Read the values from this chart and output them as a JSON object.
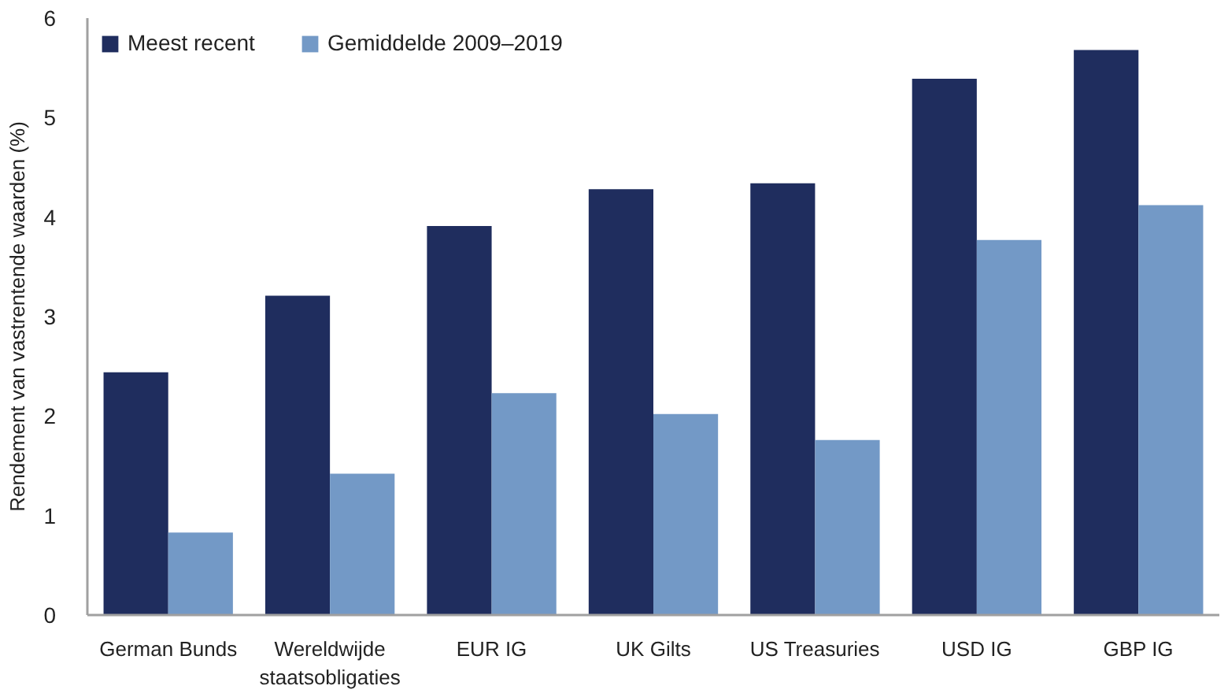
{
  "chart_data": {
    "type": "bar",
    "ylabel": "Rendement van vastrentende waarden (%)",
    "categories": [
      "German Bunds",
      "Wereldwijde staatsobligaties",
      "EUR IG",
      "UK Gilts",
      "US Treasuries",
      "USD IG",
      "GBP IG"
    ],
    "series": [
      {
        "name": "Meest recent",
        "color": "#1f2d5e",
        "values": [
          2.44,
          3.21,
          3.91,
          4.28,
          4.34,
          5.39,
          5.68
        ]
      },
      {
        "name": "Gemiddelde 2009–2019",
        "color": "#7399c6",
        "values": [
          0.83,
          1.42,
          2.23,
          2.02,
          1.76,
          3.77,
          4.12
        ]
      }
    ],
    "ylim": [
      0,
      6
    ],
    "yticks": [
      0,
      1,
      2,
      3,
      4,
      5,
      6
    ],
    "grid": false,
    "legend": "top left"
  }
}
